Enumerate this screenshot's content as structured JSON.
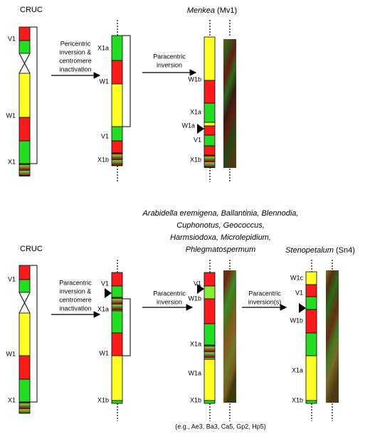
{
  "top": {
    "ancestor": "CRUC",
    "ancestor_labels": [
      "V1",
      "W1",
      "X1"
    ],
    "step1": [
      "Pericentric",
      "inversion &",
      "centromere",
      "inactivation"
    ],
    "intermediate_labels": [
      "X1a",
      "W1",
      "V1",
      "X1b"
    ],
    "step2": [
      "Paracentric",
      "inversion"
    ],
    "result": {
      "genus": "Menkea",
      "code": "(Mv1)",
      "labels": [
        "W1b",
        "X1a",
        "W1a",
        "V1",
        "X1b"
      ]
    }
  },
  "bottom": {
    "ancestor": "CRUC",
    "ancestor_labels": [
      "V1",
      "W1",
      "X1"
    ],
    "step1": [
      "Paracentric",
      "inversion &",
      "centromere",
      "inactivation"
    ],
    "intermediate_labels": [
      "V1",
      "X1a",
      "W1",
      "X1b"
    ],
    "step2": [
      "Paracentric",
      "inversion"
    ],
    "genera": [
      "Arabidella eremigena, Ballantinia, Blennodia,",
      "Cuphonotus, Geococcus,",
      "Harmsiodoxa, Microlepidium,",
      "Phlegmatospermum"
    ],
    "intermediate2_labels": [
      "V1",
      "W1b",
      "X1a",
      "W1a",
      "X1b"
    ],
    "step3": [
      "Paracentric",
      "inversion(s)"
    ],
    "result": {
      "genus": "Stenopetalum",
      "code": "(Sn4)",
      "labels": [
        "W1c",
        "V1",
        "W1b",
        "X1a",
        "X1b"
      ]
    },
    "examples": "(e.g., Ae3, Ba3, Ca5, Gp2, Hp5)"
  }
}
